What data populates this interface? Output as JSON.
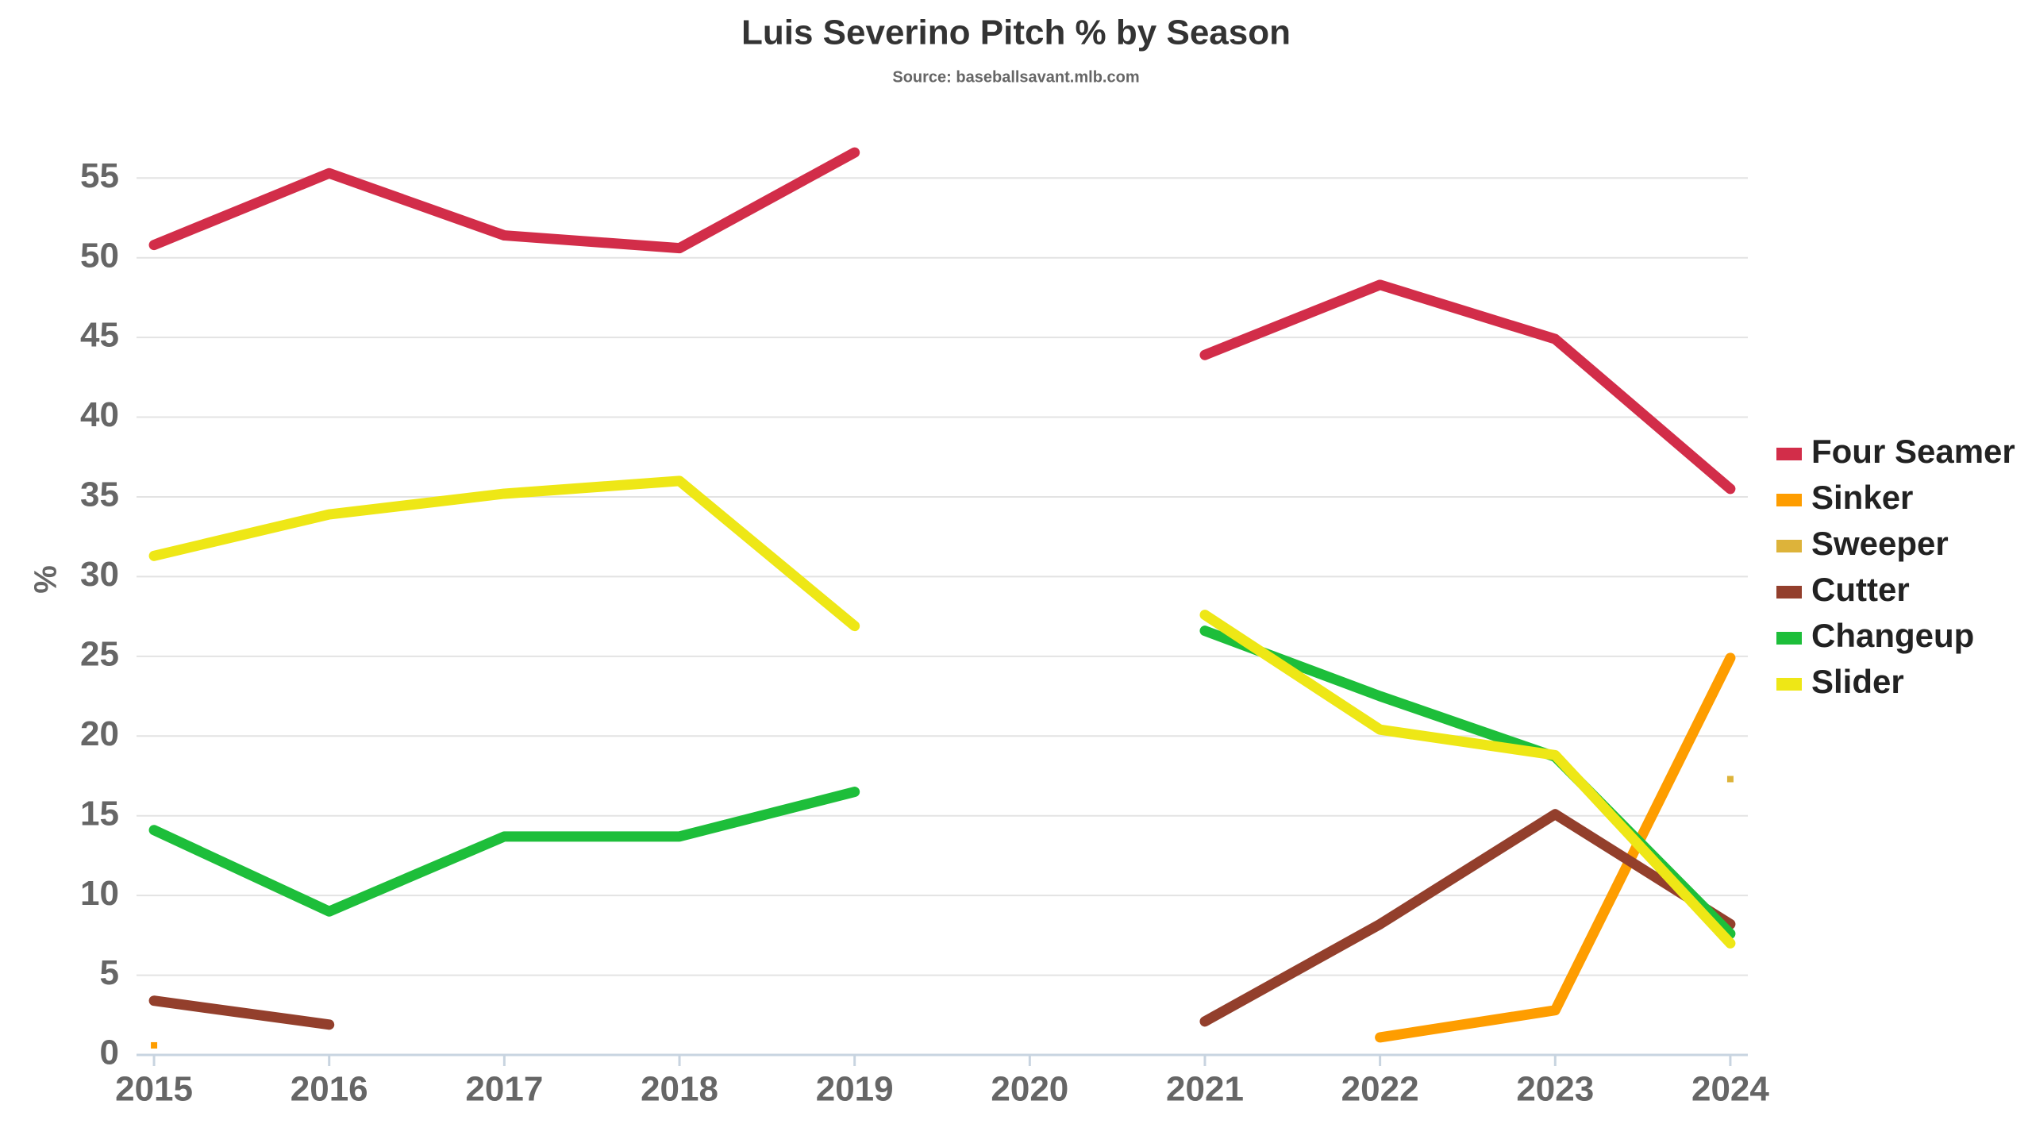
{
  "chart_data": {
    "type": "line",
    "title": "Luis Severino Pitch % by Season",
    "subtitle": "Source: baseballsavant.mlb.com",
    "y_label": "%",
    "x": [
      2015,
      2016,
      2017,
      2018,
      2019,
      2020,
      2021,
      2022,
      2023,
      2024
    ],
    "xlim": [
      2014.9,
      2024.1
    ],
    "xticks": [
      2015,
      2016,
      2017,
      2018,
      2019,
      2020,
      2021,
      2022,
      2023,
      2024
    ],
    "ylim": [
      0,
      58
    ],
    "yticks": [
      0,
      5,
      10,
      15,
      20,
      25,
      30,
      35,
      40,
      45,
      50,
      55
    ],
    "grid": true,
    "legend": "right",
    "series": [
      {
        "name": "Four Seamer",
        "color": "#d22d49",
        "values": [
          50.8,
          55.3,
          51.4,
          50.6,
          56.6,
          null,
          43.9,
          48.3,
          44.9,
          35.5
        ]
      },
      {
        "name": "Sinker",
        "color": "#fe9d00",
        "values": [
          0.6,
          null,
          null,
          null,
          null,
          null,
          null,
          1.1,
          2.8,
          24.9
        ]
      },
      {
        "name": "Sweeper",
        "color": "#ddb33a",
        "values": [
          null,
          null,
          null,
          null,
          null,
          null,
          null,
          null,
          null,
          17.3
        ]
      },
      {
        "name": "Cutter",
        "color": "#933f2c",
        "values": [
          3.4,
          1.9,
          null,
          null,
          null,
          null,
          2.1,
          8.2,
          15.1,
          8.2
        ]
      },
      {
        "name": "Changeup",
        "color": "#1dbe3a",
        "values": [
          14.1,
          9.0,
          13.7,
          13.7,
          16.5,
          null,
          26.6,
          22.5,
          18.7,
          7.6
        ]
      },
      {
        "name": "Slider",
        "color": "#eee716",
        "values": [
          31.3,
          33.9,
          35.2,
          36.0,
          26.9,
          null,
          27.6,
          20.4,
          18.8,
          7.0
        ]
      }
    ]
  }
}
